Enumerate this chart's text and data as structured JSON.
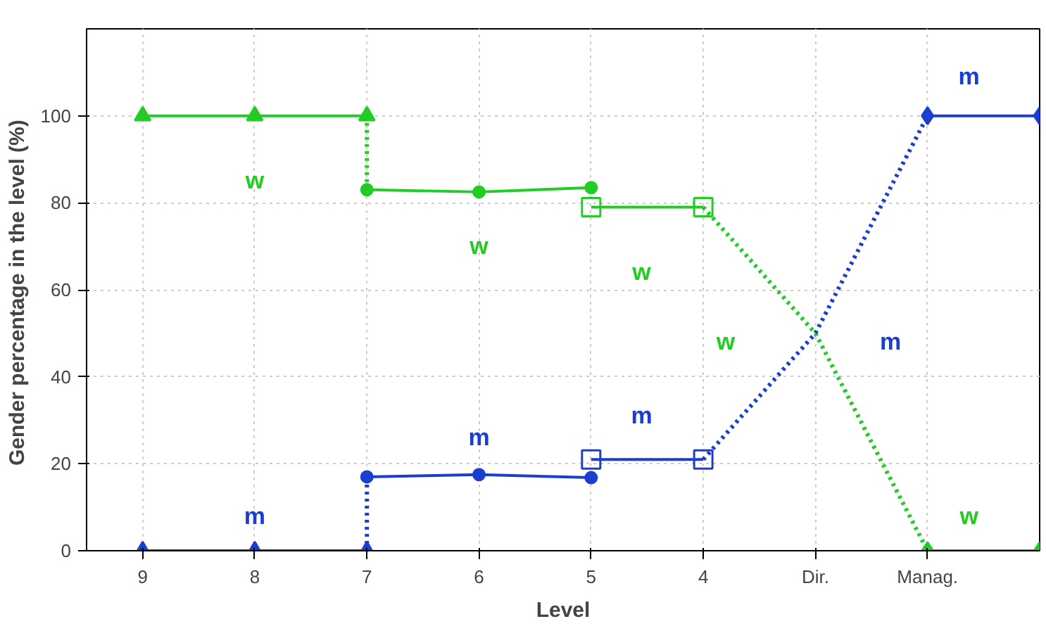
{
  "chart_data": {
    "type": "line",
    "xlabel": "Level",
    "ylabel": "Gender percentage in the level  (%)",
    "categories": [
      "9",
      "8",
      "7",
      "6",
      "5",
      "4",
      "Dir.",
      "Manag.",
      null
    ],
    "ylim": [
      0,
      120
    ],
    "yticks": [
      0,
      20,
      40,
      60,
      80,
      100
    ],
    "grid": true,
    "series": [
      {
        "color": "#22cc22",
        "values": [
          100,
          100,
          100,
          null,
          null,
          null,
          null,
          null,
          null
        ],
        "marker": "triangle",
        "line_style": "solid"
      },
      {
        "color": "#22cc22",
        "x": [
          "7",
          "7"
        ],
        "values": [
          100,
          83
        ],
        "line_style": "dotted"
      },
      {
        "color": "#22cc22",
        "values": [
          null,
          null,
          83,
          82.5,
          83.5,
          null,
          null,
          null,
          null
        ],
        "marker": "circle",
        "line_style": "solid"
      },
      {
        "color": "#22cc22",
        "values": [
          null,
          null,
          null,
          null,
          79,
          79,
          null,
          null,
          null
        ],
        "marker": "square",
        "line_style": "solid"
      },
      {
        "color": "#22cc22",
        "values": [
          null,
          null,
          null,
          null,
          null,
          79,
          50,
          0,
          null
        ],
        "marker": "none",
        "line_style": "dotted"
      },
      {
        "color": "#22cc22",
        "values": [
          null,
          null,
          null,
          null,
          null,
          null,
          null,
          0,
          0
        ],
        "marker": "diamond",
        "line_style": "solid"
      },
      {
        "color": "#1a3fd0",
        "values": [
          0,
          0,
          0,
          null,
          null,
          null,
          null,
          null,
          null
        ],
        "marker": "triangle",
        "line_style": "solid"
      },
      {
        "color": "#1a3fd0",
        "x": [
          "7",
          "7"
        ],
        "values": [
          0,
          17
        ],
        "line_style": "dotted"
      },
      {
        "color": "#1a3fd0",
        "values": [
          null,
          null,
          17,
          17.5,
          16.8,
          null,
          null,
          null,
          null
        ],
        "marker": "circle",
        "line_style": "solid"
      },
      {
        "color": "#1a3fd0",
        "values": [
          null,
          null,
          null,
          null,
          21,
          21,
          null,
          null,
          null
        ],
        "marker": "square",
        "line_style": "solid"
      },
      {
        "color": "#1a3fd0",
        "values": [
          null,
          null,
          null,
          null,
          null,
          21,
          50,
          100,
          null
        ],
        "marker": "none",
        "line_style": "dotted"
      },
      {
        "color": "#1a3fd0",
        "values": [
          null,
          null,
          null,
          null,
          null,
          null,
          null,
          100,
          100
        ],
        "marker": "diamond",
        "line_style": "solid"
      }
    ],
    "annotations": [
      "w",
      "w",
      "w",
      "w",
      "w",
      "m",
      "m",
      "m",
      "m",
      "m"
    ]
  }
}
